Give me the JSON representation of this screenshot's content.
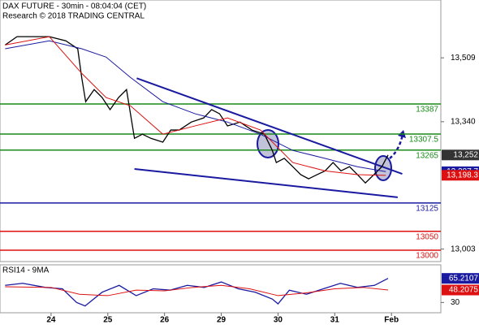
{
  "chart_data": [
    {
      "type": "line",
      "title": "DAX FUTURE - 30min - 08:04:04 (CET)",
      "subtitle": "Research © 2018 TRADING CENTRAL",
      "xlim": [
        0.1,
        7.87
      ],
      "ylim": [
        12970,
        13662
      ],
      "yticks": [
        {
          "value": 13509,
          "label": "13,509"
        },
        {
          "value": 13340,
          "label": "13,340"
        },
        {
          "value": 13003,
          "label": "13,003"
        }
      ],
      "series": [
        {
          "color": "#000000",
          "x": [
            0.19,
            0.4,
            0.69,
            0.97,
            1.26,
            1.47,
            1.54,
            1.61,
            1.76,
            1.9,
            2.04,
            2.19,
            2.33,
            2.47,
            2.61,
            2.76,
            2.97,
            3.11,
            3.26,
            3.47,
            3.69,
            3.83,
            3.97,
            4.11,
            4.33,
            4.54,
            4.76,
            4.9,
            4.97,
            5.11,
            5.26,
            5.4,
            5.54,
            5.69,
            5.83,
            5.97,
            6.11,
            6.26,
            6.4,
            6.54,
            6.69,
            6.83,
            6.94
          ],
          "values": [
            13543,
            13565,
            13565,
            13565,
            13554,
            13533,
            13457,
            13393,
            13425,
            13404,
            13372,
            13404,
            13425,
            13296,
            13307,
            13296,
            13286,
            13318,
            13318,
            13339,
            13350,
            13372,
            13361,
            13329,
            13339,
            13318,
            13307,
            13264,
            13232,
            13243,
            13221,
            13200,
            13189,
            13200,
            13210,
            13232,
            13210,
            13221,
            13200,
            13178,
            13200,
            13221,
            13252
          ]
        },
        {
          "color": "#1a1aa0",
          "x": [
            0.19,
            0.97,
            1.54,
            1.97,
            2.4,
            2.97,
            3.54,
            4.11,
            4.69,
            5.26,
            5.83,
            6.4,
            6.9
          ],
          "values": [
            13533,
            13554,
            13533,
            13511,
            13457,
            13393,
            13361,
            13339,
            13307,
            13264,
            13243,
            13221,
            13208
          ]
        },
        {
          "color": "#dd1111",
          "x": [
            0.19,
            0.97,
            1.54,
            1.97,
            2.4,
            2.97,
            3.54,
            4.11,
            4.69,
            5.26,
            5.83,
            6.4,
            6.9
          ],
          "values": [
            13543,
            13565,
            13468,
            13404,
            13382,
            13307,
            13329,
            13350,
            13318,
            13232,
            13210,
            13200,
            13198
          ]
        }
      ],
      "levels": {
        "values": [
          13387,
          13307.5,
          13265,
          13125,
          13050,
          13000
        ],
        "colors": [
          "#1a8a1a",
          "#1a8a1a",
          "#1a8a1a",
          "#1a1aa0",
          "#dd1111",
          "#dd1111"
        ]
      },
      "trendlines": [
        {
          "color": "#1a1aa0",
          "x": [
            2.51,
            7.19
          ],
          "values": [
            13455,
            13202
          ]
        },
        {
          "color": "#1a1aa0",
          "x": [
            2.47,
            7.11
          ],
          "values": [
            13215,
            13140
          ]
        }
      ],
      "tags": {
        "values": [
          13252,
          13207.7,
          13198.3
        ],
        "value_labels": [
          "13,252",
          "13,207.7",
          "13,198.3"
        ],
        "colors": [
          "#333333",
          "#1a1aa0",
          "#dd1111"
        ]
      }
    },
    {
      "type": "line",
      "title": "RSI14 - 9MA",
      "xlim": [
        0.1,
        7.87
      ],
      "ylim": [
        15,
        85
      ],
      "yticks": [
        30
      ],
      "xticks": [
        {
          "value": 1,
          "label": "24"
        },
        {
          "value": 2,
          "label": "25"
        },
        {
          "value": 3,
          "label": "26"
        },
        {
          "value": 4,
          "label": "29"
        },
        {
          "value": 5,
          "label": "30"
        },
        {
          "value": 6,
          "label": "31"
        },
        {
          "value": 7,
          "label": "Feb"
        }
      ],
      "series": [
        {
          "color": "#1a1aa0",
          "x": [
            0.19,
            0.5,
            0.9,
            1.2,
            1.45,
            1.6,
            1.9,
            2.2,
            2.5,
            2.8,
            3.1,
            3.4,
            3.7,
            4.0,
            4.3,
            4.6,
            4.9,
            5.0,
            5.2,
            5.5,
            5.8,
            6.1,
            6.4,
            6.7,
            6.94
          ],
          "values": [
            55,
            58,
            52,
            50,
            30,
            25,
            45,
            55,
            40,
            50,
            48,
            55,
            52,
            60,
            50,
            45,
            35,
            28,
            48,
            42,
            50,
            58,
            52,
            55,
            65.2107
          ]
        },
        {
          "color": "#dd1111",
          "x": [
            0.19,
            1,
            1.5,
            2,
            2.5,
            3,
            3.5,
            4,
            4.5,
            5,
            5.5,
            6,
            6.5,
            6.94
          ],
          "values": [
            53,
            52,
            42,
            40,
            48,
            47,
            52,
            55,
            50,
            40,
            44,
            50,
            52,
            48.2075
          ]
        }
      ],
      "tags": {
        "values": [
          65.2107,
          48.2075
        ],
        "colors": [
          "#1a1aa0",
          "#dd1111"
        ]
      }
    }
  ]
}
